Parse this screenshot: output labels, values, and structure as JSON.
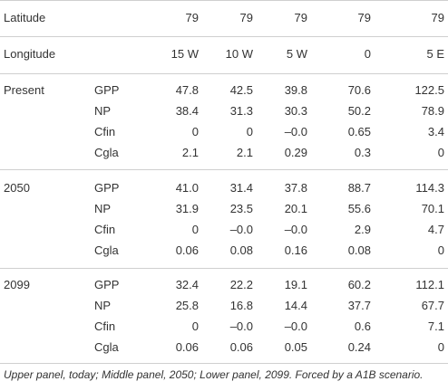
{
  "header_rows": [
    {
      "label": "Latitude",
      "values": [
        "79",
        "79",
        "79",
        "79",
        "79"
      ]
    },
    {
      "label": "Longitude",
      "values": [
        "15 W",
        "10 W",
        "5 W",
        "0",
        "5 E"
      ]
    }
  ],
  "panels": [
    {
      "period": "Present",
      "rows": [
        {
          "var": "GPP",
          "values": [
            "47.8",
            "42.5",
            "39.8",
            "70.6",
            "122.5"
          ]
        },
        {
          "var": "NP",
          "values": [
            "38.4",
            "31.3",
            "30.3",
            "50.2",
            "78.9"
          ]
        },
        {
          "var": "Cfin",
          "values": [
            "0",
            "0",
            "–0.0",
            "0.65",
            "3.4"
          ]
        },
        {
          "var": "Cgla",
          "values": [
            "2.1",
            "2.1",
            "0.29",
            "0.3",
            "0"
          ]
        }
      ]
    },
    {
      "period": "2050",
      "rows": [
        {
          "var": "GPP",
          "values": [
            "41.0",
            "31.4",
            "37.8",
            "88.7",
            "114.3"
          ]
        },
        {
          "var": "NP",
          "values": [
            "31.9",
            "23.5",
            "20.1",
            "55.6",
            "70.1"
          ]
        },
        {
          "var": "Cfin",
          "values": [
            "0",
            "–0.0",
            "–0.0",
            "2.9",
            "4.7"
          ]
        },
        {
          "var": "Cgla",
          "values": [
            "0.06",
            "0.08",
            "0.16",
            "0.08",
            "0"
          ]
        }
      ]
    },
    {
      "period": "2099",
      "rows": [
        {
          "var": "GPP",
          "values": [
            "32.4",
            "22.2",
            "19.1",
            "60.2",
            "112.1"
          ]
        },
        {
          "var": "NP",
          "values": [
            "25.8",
            "16.8",
            "14.4",
            "37.7",
            "67.7"
          ]
        },
        {
          "var": "Cfin",
          "values": [
            "0",
            "–0.0",
            "–0.0",
            "0.6",
            "7.1"
          ]
        },
        {
          "var": "Cgla",
          "values": [
            "0.06",
            "0.06",
            "0.05",
            "0.24",
            "0"
          ]
        }
      ]
    }
  ],
  "caption": "Upper panel, today; Middle panel, 2050; Lower panel, 2099. Forced by a A1B scenario."
}
